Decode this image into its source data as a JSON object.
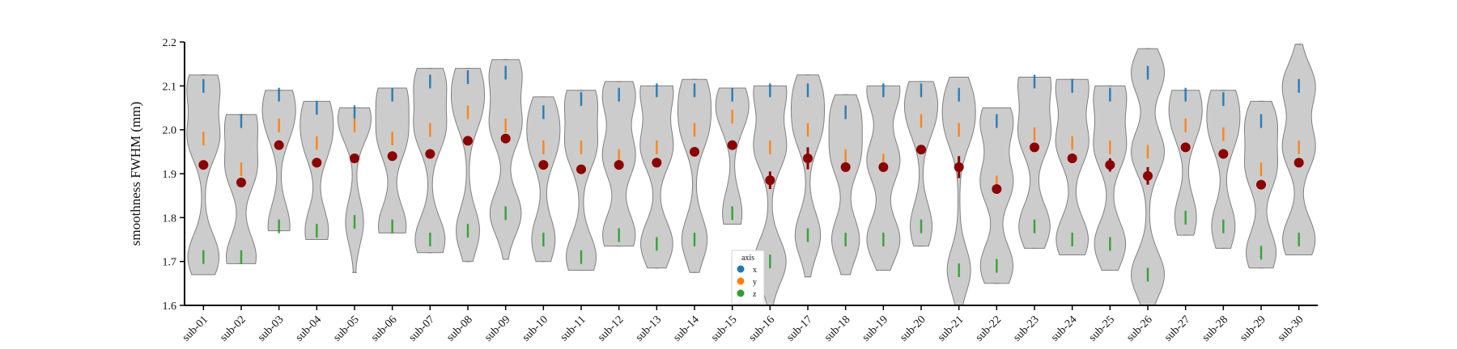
{
  "chart_data": {
    "type": "violin",
    "xlabel": "",
    "ylabel": "smoothness FWHM (mm)",
    "ylim": [
      1.6,
      2.2
    ],
    "yticks": [
      "1.6",
      "1.7",
      "1.8",
      "1.9",
      "2.0",
      "2.1",
      "2.2"
    ],
    "categories": [
      "sub-01",
      "sub-02",
      "sub-03",
      "sub-04",
      "sub-05",
      "sub-06",
      "sub-07",
      "sub-08",
      "sub-09",
      "sub-10",
      "sub-11",
      "sub-12",
      "sub-13",
      "sub-14",
      "sub-15",
      "sub-16",
      "sub-17",
      "sub-18",
      "sub-19",
      "sub-20",
      "sub-21",
      "sub-22",
      "sub-23",
      "sub-24",
      "sub-25",
      "sub-26",
      "sub-27",
      "sub-28",
      "sub-29",
      "sub-30"
    ],
    "violin_color": "#cccccc",
    "violin_edge_color": "#808080",
    "mean_color": "#8b0000",
    "legend": {
      "title": "axis",
      "placement": "bottom-center",
      "entries": [
        {
          "label": "x",
          "color": "#1f77b4"
        },
        {
          "label": "y",
          "color": "#ff7f0e"
        },
        {
          "label": "z",
          "color": "#2ca02c"
        }
      ]
    },
    "series": [
      {
        "name": "x",
        "color": "#1f77b4",
        "values": [
          2.1,
          2.02,
          2.08,
          2.05,
          2.04,
          2.08,
          2.11,
          2.12,
          2.13,
          2.04,
          2.07,
          2.08,
          2.09,
          2.09,
          2.08,
          2.09,
          2.09,
          2.04,
          2.09,
          2.09,
          2.08,
          2.02,
          2.11,
          2.1,
          2.08,
          2.13,
          2.08,
          2.07,
          2.02,
          2.1
        ]
      },
      {
        "name": "y",
        "color": "#ff7f0e",
        "values": [
          1.98,
          1.91,
          2.01,
          1.97,
          2.01,
          1.98,
          2.0,
          2.04,
          2.01,
          1.96,
          1.96,
          1.94,
          1.96,
          2.0,
          2.03,
          1.96,
          2.0,
          1.94,
          1.93,
          2.02,
          2.0,
          1.88,
          1.99,
          1.97,
          1.96,
          1.95,
          2.01,
          1.99,
          1.91,
          1.96
        ]
      },
      {
        "name": "z",
        "color": "#2ca02c",
        "values": [
          1.71,
          1.71,
          1.78,
          1.77,
          1.79,
          1.78,
          1.75,
          1.77,
          1.81,
          1.75,
          1.71,
          1.76,
          1.74,
          1.75,
          1.81,
          1.7,
          1.76,
          1.75,
          1.75,
          1.78,
          1.68,
          1.69,
          1.78,
          1.75,
          1.74,
          1.67,
          1.8,
          1.78,
          1.72,
          1.75
        ]
      }
    ],
    "means": [
      1.92,
      1.88,
      1.965,
      1.925,
      1.935,
      1.94,
      1.945,
      1.975,
      1.98,
      1.92,
      1.91,
      1.92,
      1.925,
      1.95,
      1.965,
      1.885,
      1.935,
      1.915,
      1.915,
      1.955,
      1.915,
      1.865,
      1.96,
      1.935,
      1.92,
      1.895,
      1.96,
      1.945,
      1.875,
      1.925
    ],
    "mean_error": [
      0.01,
      0.0,
      0.0,
      0.005,
      0.0,
      0.0,
      0.01,
      0.0,
      0.0,
      0.0,
      0.005,
      0.01,
      0.0,
      0.0,
      0.0,
      0.02,
      0.025,
      0.01,
      0.01,
      0.0,
      0.025,
      0.0,
      0.01,
      0.0,
      0.015,
      0.02,
      0.0,
      0.0,
      0.0,
      0.0
    ],
    "violin_range": [
      [
        1.67,
        2.125
      ],
      [
        1.695,
        2.035
      ],
      [
        1.77,
        2.09
      ],
      [
        1.75,
        2.065
      ],
      [
        1.675,
        2.05
      ],
      [
        1.765,
        2.095
      ],
      [
        1.72,
        2.14
      ],
      [
        1.7,
        2.14
      ],
      [
        1.705,
        2.16
      ],
      [
        1.7,
        2.075
      ],
      [
        1.68,
        2.09
      ],
      [
        1.735,
        2.11
      ],
      [
        1.685,
        2.1
      ],
      [
        1.675,
        2.115
      ],
      [
        1.785,
        2.095
      ],
      [
        1.6,
        2.1
      ],
      [
        1.665,
        2.125
      ],
      [
        1.67,
        2.08
      ],
      [
        1.68,
        2.1
      ],
      [
        1.735,
        2.11
      ],
      [
        1.6,
        2.12
      ],
      [
        1.65,
        2.05
      ],
      [
        1.73,
        2.12
      ],
      [
        1.715,
        2.115
      ],
      [
        1.68,
        2.1
      ],
      [
        1.6,
        2.185
      ],
      [
        1.76,
        2.09
      ],
      [
        1.73,
        2.09
      ],
      [
        1.685,
        2.065
      ],
      [
        1.715,
        2.195
      ]
    ]
  }
}
